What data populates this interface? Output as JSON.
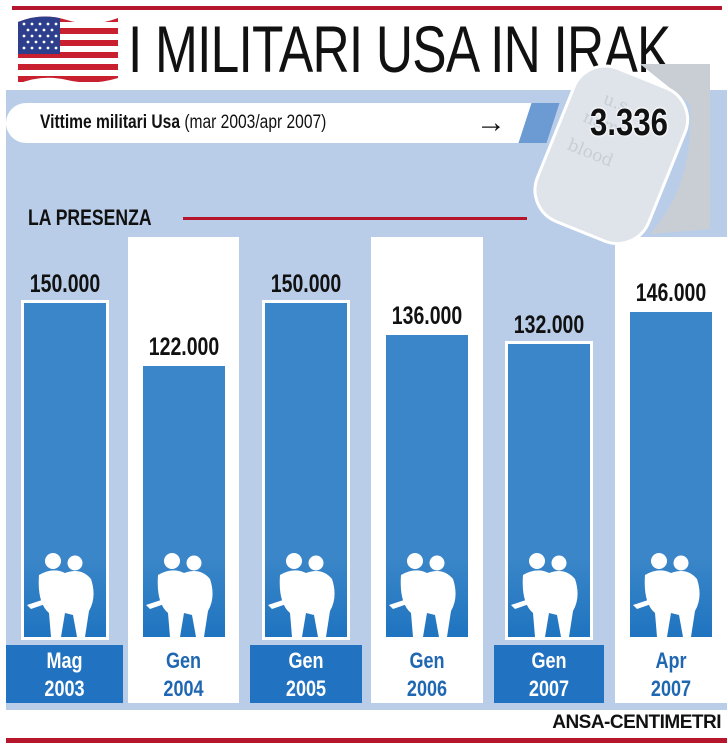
{
  "header": {
    "title": "I MILITARI USA IN IRAK",
    "flag_icon": "us-flag-icon"
  },
  "victims": {
    "label_bold": "Vittime militari Usa",
    "label_period": "(mar 2003/apr 2007)",
    "arrow": "→",
    "value": "3.336",
    "dogtag_text": [
      "u.s.",
      "name",
      "blood"
    ]
  },
  "section": {
    "label": "LA PRESENZA"
  },
  "columns": [
    {
      "value_label": "150.000",
      "month": "Mag",
      "year": "2003",
      "bg": "blue",
      "label_style": "dark"
    },
    {
      "value_label": "122.000",
      "month": "Gen",
      "year": "2004",
      "bg": "white",
      "label_style": "light"
    },
    {
      "value_label": "150.000",
      "month": "Gen",
      "year": "2005",
      "bg": "blue",
      "label_style": "dark"
    },
    {
      "value_label": "136.000",
      "month": "Gen",
      "year": "2006",
      "bg": "white",
      "label_style": "light"
    },
    {
      "value_label": "132.000",
      "month": "Gen",
      "year": "2007",
      "bg": "blue",
      "label_style": "dark"
    },
    {
      "value_label": "146.000",
      "month": "Apr",
      "year": "2007",
      "bg": "white",
      "label_style": "light"
    }
  ],
  "credit": "ANSA-CENTIMETRI",
  "colors": {
    "bar": "#3a86c8",
    "panel": "#b9cde8",
    "accent_red": "#b5162b",
    "label_dark": "#2172c0"
  },
  "chart_data": {
    "type": "bar",
    "title": "I MILITARI USA IN IRAK",
    "subtitle": "LA PRESENZA",
    "categories": [
      "Mag 2003",
      "Gen 2004",
      "Gen 2005",
      "Gen 2006",
      "Gen 2007",
      "Apr 2007"
    ],
    "values": [
      150000,
      122000,
      150000,
      136000,
      132000,
      146000
    ],
    "value_labels": [
      "150.000",
      "122.000",
      "150.000",
      "136.000",
      "132.000",
      "146.000"
    ],
    "xlabel": "",
    "ylabel": "",
    "grid": false,
    "legend": null,
    "annotations": [
      {
        "text": "Vittime militari Usa (mar 2003/apr 2007)",
        "value": "3.336"
      }
    ],
    "source": "ANSA-CENTIMETRI"
  }
}
